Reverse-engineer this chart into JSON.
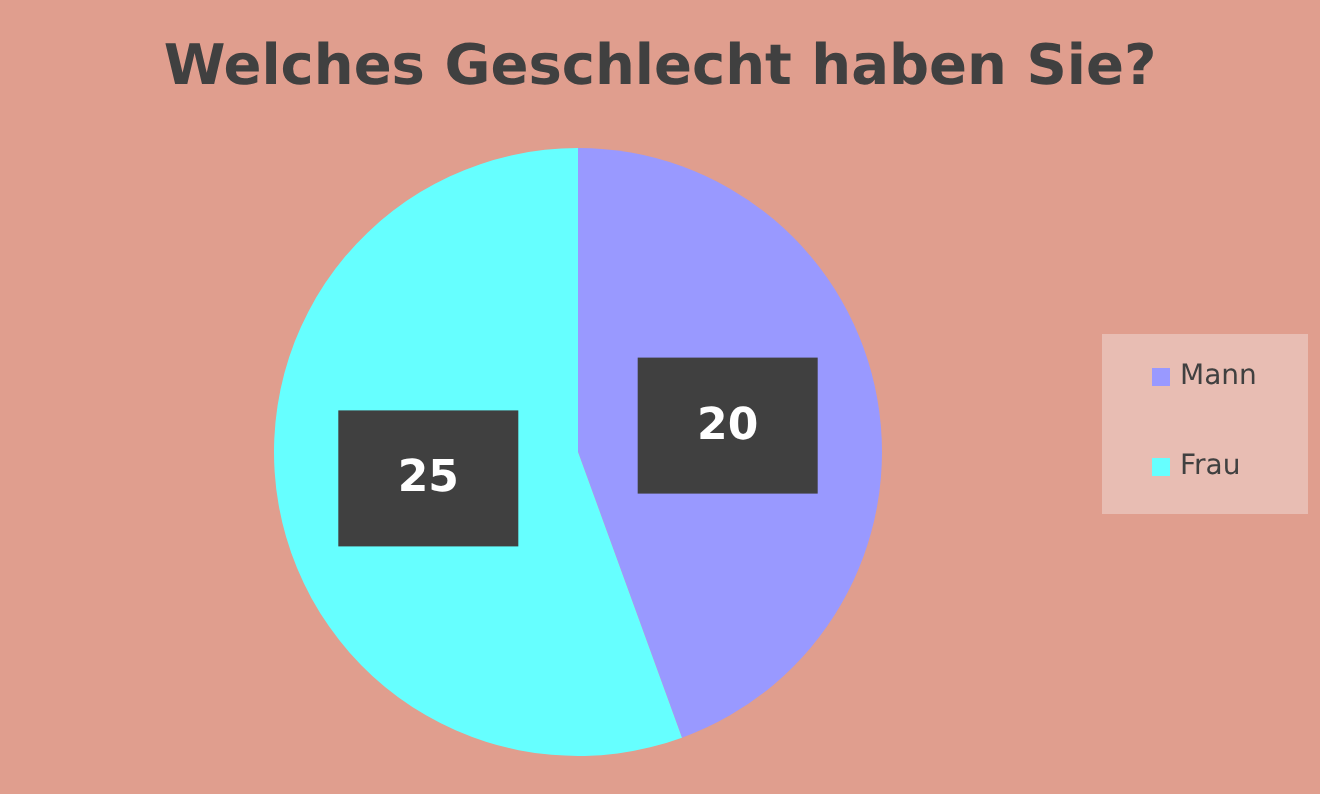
{
  "chart_data": {
    "type": "pie",
    "title": "Welches Geschlecht haben Sie?",
    "categories": [
      "Mann",
      "Frau"
    ],
    "values": [
      20,
      25
    ],
    "colors": [
      "#9999ff",
      "#66ffff"
    ],
    "data_labels": true,
    "legend": "right"
  }
}
